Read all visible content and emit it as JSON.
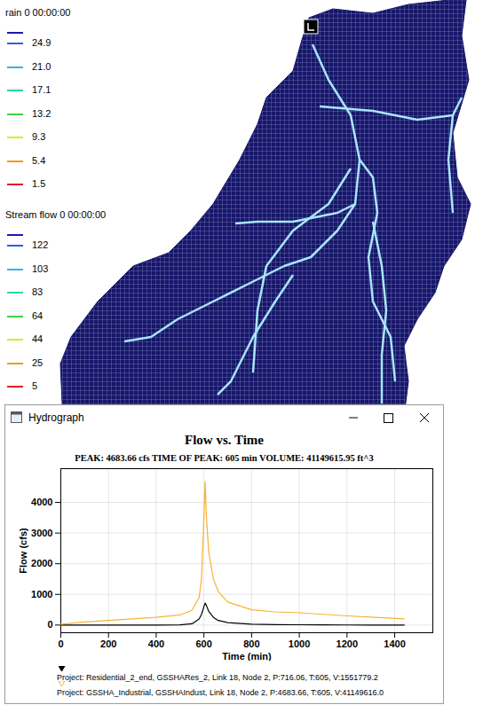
{
  "map": {
    "legends": [
      {
        "title": "rain 0 00:00:00",
        "items": [
          {
            "color": "#1a1ab0"
          },
          {
            "value": 24.9,
            "color": "#2e5fe0"
          },
          {
            "value": 21,
            "label": "21.0",
            "color": "#34b4e4"
          },
          {
            "value": 17.1,
            "color": "#2fd3b0"
          },
          {
            "value": 13.2,
            "color": "#44d23c"
          },
          {
            "value": 9.3,
            "color": "#e6e62a"
          },
          {
            "value": 5.4,
            "color": "#f29a1c"
          },
          {
            "value": 1.5,
            "color": "#e02020"
          }
        ]
      },
      {
        "title": "Stream flow 0 00:00:00",
        "items": [
          {
            "color": "#1a1ab0"
          },
          {
            "value": 122,
            "color": "#2e5fe0"
          },
          {
            "value": 103,
            "color": "#34b4e4"
          },
          {
            "value": 83,
            "color": "#2fd3b0"
          },
          {
            "value": 64,
            "color": "#44d23c"
          },
          {
            "value": 44,
            "color": "#e6e62a"
          },
          {
            "value": 25,
            "color": "#f29a1c"
          },
          {
            "value": 5,
            "color": "#e02020"
          }
        ]
      }
    ]
  },
  "window": {
    "title": "Hydrograph"
  },
  "chart_data": {
    "type": "line",
    "title": "Flow vs. Time",
    "subtitle": "PEAK: 4683.66 cfs  TIME OF PEAK: 605 min  VOLUME: 41149615.95 ft^3",
    "xlabel": "Time (min)",
    "ylabel": "Flow (cfs)",
    "x": [
      0,
      100,
      200,
      300,
      400,
      500,
      550,
      580,
      590,
      600,
      605,
      610,
      620,
      640,
      660,
      700,
      800,
      900,
      1000,
      1100,
      1200,
      1300,
      1440
    ],
    "series": [
      {
        "name": "Project:  Residential_2_end, GSSHARes_2, Link 18, Node 2, P:716.06, T:605, V:1551779.2",
        "color": "#000000",
        "values": [
          0,
          0,
          0,
          0,
          0,
          5,
          40,
          200,
          350,
          600,
          716.06,
          650,
          450,
          250,
          150,
          80,
          30,
          15,
          10,
          5,
          3,
          2,
          1
        ]
      },
      {
        "name": "Project:  GSSHA_Industrial, GSSHAIndust, Link 18, Node 2, P:4683.66, T:605, V:41149616.0",
        "color": "#f5b335",
        "values": [
          30,
          100,
          150,
          200,
          250,
          330,
          480,
          900,
          1500,
          3500,
          4683.66,
          3600,
          2400,
          1500,
          1100,
          750,
          500,
          430,
          400,
          350,
          300,
          260,
          200
        ]
      }
    ],
    "xlim": [
      0,
      1560
    ],
    "ylim": [
      -250,
      5100
    ],
    "xticks": [
      0,
      200,
      400,
      600,
      800,
      1000,
      1200,
      1400
    ],
    "yticks": [
      0,
      1000,
      2000,
      3000,
      4000
    ],
    "grid": true,
    "marker": "triangle"
  }
}
